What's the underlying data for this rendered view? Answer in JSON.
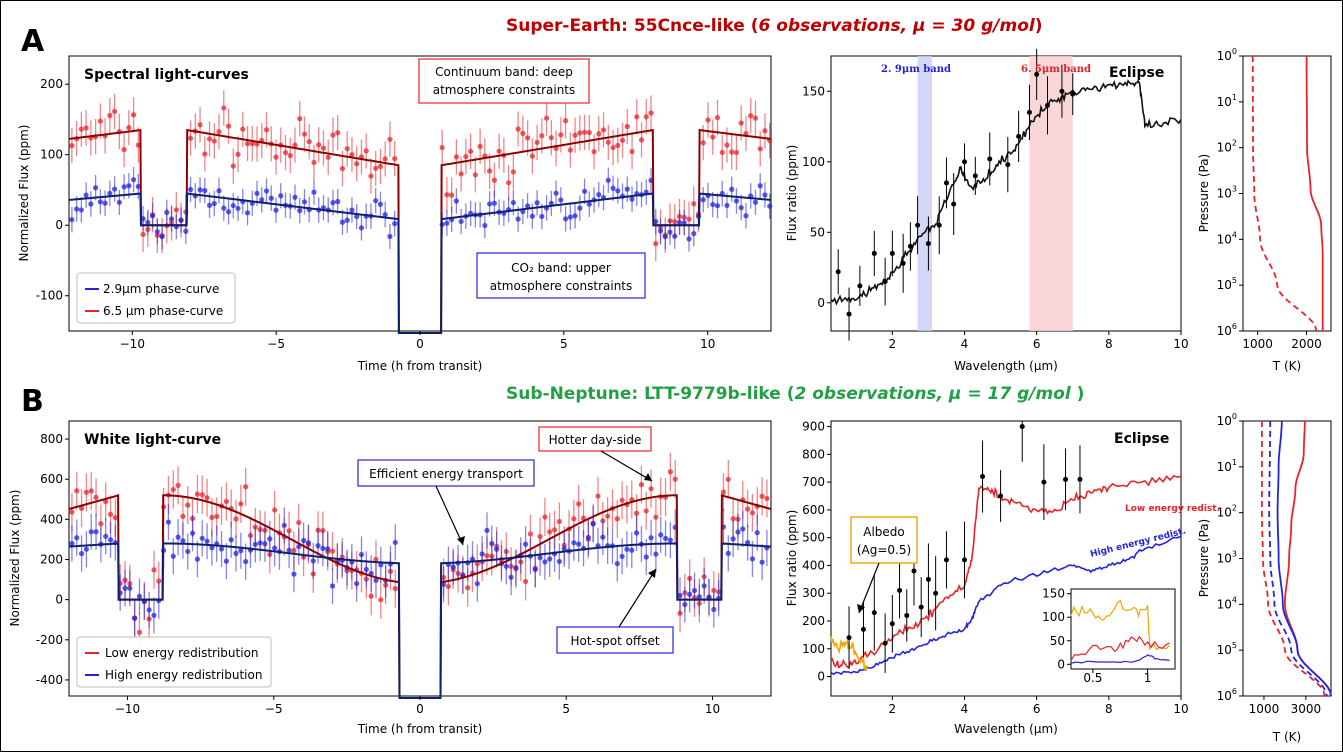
{
  "panels": {
    "A": {
      "letter": "A",
      "headline_parts": [
        "Super-Earth: 55Cnce-like (",
        "6 observations, ",
        "μ = 30 g/mol",
        ")"
      ],
      "headline_color": "#c00000",
      "lc_title": "Spectral light-curves",
      "annotation_top": [
        "Continuum band: deep",
        "atmosphere constraints"
      ],
      "annotation_bottom": [
        "CO₂ band: upper",
        "atmosphere constraints"
      ],
      "legend": [
        "2.9μm phase-curve",
        "6.5 μm phase-curve"
      ],
      "eclipse_title": "Eclipse",
      "band_labels": [
        "2. 9μm band",
        "6. 5μm band"
      ]
    },
    "B": {
      "letter": "B",
      "headline_parts": [
        "Sub-Neptune: LTT-9779b-like (",
        "2 observations, ",
        "μ = 17 g/mol ",
        ")"
      ],
      "headline_color": "#22a045",
      "lc_title": "White light-curve",
      "annotation_hot": "Hotter day-side",
      "annotation_eff": "Efficient energy transport",
      "annotation_spot": "Hot-spot offset",
      "legend": [
        "Low energy redistribution",
        "High energy redistribution"
      ],
      "eclipse_title": "Eclipse",
      "albedo": [
        "Albedo",
        "(Ag=0.5)"
      ],
      "low_label": "Low energy redist.",
      "high_label": "High energy redist."
    }
  },
  "colors": {
    "red": "#e8232a",
    "blue": "#2323e0",
    "darkred": "#8b0000",
    "darkblue": "#0f1f6b",
    "orange": "#f0a500",
    "bandblue": "#c9cdf5",
    "bandred": "#f8cdd0"
  },
  "chart_data": [
    {
      "type": "scatter",
      "id": "A-lightcurve",
      "xlabel": "Time (h from transit)",
      "ylabel": "Normalized Flux (ppm)",
      "xlim": [
        -12.2,
        12.2
      ],
      "ylim": [
        -150,
        240
      ],
      "xticks": [
        -10,
        -5,
        0,
        5,
        10
      ],
      "xticklabels": [
        "−10",
        "−5",
        "0",
        "5",
        "10"
      ],
      "yticks": [
        -100,
        0,
        100,
        200
      ],
      "yticklabels": [
        "-100",
        "0",
        "100",
        "200"
      ],
      "series": [
        {
          "name": "2.9μm phase-curve",
          "mean_amplitude": 45,
          "night": 5,
          "err": 18,
          "noise": 20
        },
        {
          "name": "6.5 μm phase-curve",
          "mean_amplitude": 135,
          "night": 80,
          "err": 25,
          "noise": 30
        }
      ],
      "eclipse_h": [
        -9.7,
        -8.1,
        8.1,
        9.7
      ],
      "transit_h": [
        -0.75,
        0.75
      ]
    },
    {
      "type": "line",
      "id": "A-eclipse",
      "xlabel": "Wavelength (μm)",
      "ylabel": "Flux ratio (ppm)",
      "xlim": [
        0.3,
        10
      ],
      "ylim": [
        -20,
        175
      ],
      "xticks": [
        2,
        4,
        6,
        8,
        10
      ],
      "yticks": [
        0,
        50,
        100,
        150
      ],
      "bands": [
        [
          2.7,
          3.1
        ],
        [
          5.8,
          7.0
        ]
      ],
      "model": [
        [
          0.3,
          0
        ],
        [
          0.8,
          2
        ],
        [
          1.2,
          5
        ],
        [
          1.6,
          12
        ],
        [
          2.0,
          20
        ],
        [
          2.4,
          35
        ],
        [
          2.8,
          48
        ],
        [
          3.2,
          55
        ],
        [
          3.6,
          80
        ],
        [
          3.9,
          95
        ],
        [
          4.2,
          80
        ],
        [
          4.6,
          90
        ],
        [
          5.0,
          100
        ],
        [
          5.4,
          110
        ],
        [
          5.8,
          125
        ],
        [
          6.2,
          138
        ],
        [
          6.6,
          145
        ],
        [
          7.0,
          150
        ],
        [
          7.5,
          152
        ],
        [
          8.0,
          154
        ],
        [
          8.5,
          156
        ],
        [
          8.85,
          156
        ],
        [
          9.0,
          125
        ],
        [
          9.4,
          126
        ],
        [
          10,
          130
        ]
      ],
      "observations": [
        [
          0.5,
          22
        ],
        [
          0.8,
          -8
        ],
        [
          1.1,
          12
        ],
        [
          1.5,
          35
        ],
        [
          1.8,
          15
        ],
        [
          2.0,
          35
        ],
        [
          2.3,
          28
        ],
        [
          2.5,
          40
        ],
        [
          2.7,
          55
        ],
        [
          3.0,
          42
        ],
        [
          3.3,
          55
        ],
        [
          3.5,
          85
        ],
        [
          3.7,
          70
        ],
        [
          4.0,
          100
        ],
        [
          4.3,
          90
        ],
        [
          4.7,
          102
        ],
        [
          5.2,
          98
        ],
        [
          5.5,
          118
        ],
        [
          5.8,
          135
        ],
        [
          6.0,
          162
        ],
        [
          6.3,
          140
        ],
        [
          6.7,
          150
        ],
        [
          7.0,
          148
        ]
      ]
    },
    {
      "type": "line",
      "id": "A-tp",
      "xlabel": "T (K)",
      "ylabel": "Pressure (Pa)",
      "xlim": [
        700,
        2500
      ],
      "ylim": [
        1,
        1000000
      ],
      "yscale": "log",
      "xticks": [
        1000,
        2000
      ],
      "series": [
        {
          "style": "solid",
          "points": [
            [
              2000,
              1
            ],
            [
              2010,
              100
            ],
            [
              2080,
              800
            ],
            [
              2300,
              5000
            ],
            [
              2330,
              20000
            ],
            [
              2330,
              1000000
            ]
          ]
        },
        {
          "style": "dashed",
          "points": [
            [
              900,
              1
            ],
            [
              905,
              100
            ],
            [
              930,
              1000
            ],
            [
              1050,
              10000
            ],
            [
              1400,
              100000
            ],
            [
              2200,
              1000000
            ]
          ]
        }
      ]
    },
    {
      "type": "scatter",
      "id": "B-lightcurve",
      "xlabel": "Time (h from transit)",
      "ylabel": "Normalized Flux (ppm)",
      "xlim": [
        -12.0,
        12.0
      ],
      "ylim": [
        -480,
        890
      ],
      "xticks": [
        -10,
        -5,
        0,
        5,
        10
      ],
      "xticklabels": [
        "−10",
        "−5",
        "0",
        "5",
        "10"
      ],
      "yticks": [
        -400,
        -200,
        0,
        200,
        400,
        600,
        800
      ],
      "series": [
        {
          "name": "Low energy redistribution",
          "day": 520,
          "night": 80,
          "err": 95,
          "noise": 110
        },
        {
          "name": "High energy redistribution",
          "day": 280,
          "night": 180,
          "err": 90,
          "noise": 100
        }
      ],
      "eclipse_h": [
        -10.3,
        -8.8,
        8.8,
        10.3
      ],
      "transit_h": [
        -0.7,
        0.7
      ]
    },
    {
      "type": "line",
      "id": "B-eclipse",
      "xlabel": "Wavelength (μm)",
      "ylabel": "Flux ratio (ppm)",
      "xlim": [
        0.3,
        10
      ],
      "ylim": [
        -70,
        920
      ],
      "xticks": [
        2,
        4,
        6,
        8,
        10
      ],
      "yticks": [
        0,
        100,
        200,
        300,
        400,
        500,
        600,
        700,
        800,
        900
      ],
      "low_model": [
        [
          0.3,
          50
        ],
        [
          0.6,
          40
        ],
        [
          1.0,
          55
        ],
        [
          1.5,
          90
        ],
        [
          2.0,
          140
        ],
        [
          2.5,
          180
        ],
        [
          3.0,
          220
        ],
        [
          3.5,
          280
        ],
        [
          4.0,
          330
        ],
        [
          4.2,
          420
        ],
        [
          4.4,
          680
        ],
        [
          4.7,
          680
        ],
        [
          5.0,
          640
        ],
        [
          5.5,
          620
        ],
        [
          6.0,
          600
        ],
        [
          6.5,
          590
        ],
        [
          7.0,
          640
        ],
        [
          7.5,
          660
        ],
        [
          8.0,
          680
        ],
        [
          9.0,
          700
        ],
        [
          10.0,
          720
        ]
      ],
      "high_model": [
        [
          0.3,
          10
        ],
        [
          1.0,
          15
        ],
        [
          1.5,
          40
        ],
        [
          2.0,
          70
        ],
        [
          2.5,
          95
        ],
        [
          3.0,
          125
        ],
        [
          3.5,
          150
        ],
        [
          4.0,
          170
        ],
        [
          4.2,
          205
        ],
        [
          4.4,
          270
        ],
        [
          5.0,
          330
        ],
        [
          6.0,
          370
        ],
        [
          7.0,
          400
        ],
        [
          7.5,
          380
        ],
        [
          8.0,
          400
        ],
        [
          8.5,
          420
        ],
        [
          9.0,
          460
        ],
        [
          10.0,
          505
        ]
      ],
      "albedo_model": [
        [
          0.3,
          130
        ],
        [
          0.5,
          110
        ],
        [
          0.7,
          120
        ],
        [
          0.9,
          100
        ],
        [
          1.1,
          60
        ],
        [
          1.3,
          40
        ]
      ],
      "observations": [
        [
          0.8,
          140
        ],
        [
          1.2,
          170
        ],
        [
          1.5,
          230
        ],
        [
          1.8,
          120
        ],
        [
          2.0,
          190
        ],
        [
          2.2,
          310
        ],
        [
          2.4,
          220
        ],
        [
          2.6,
          380
        ],
        [
          2.8,
          250
        ],
        [
          3.0,
          350
        ],
        [
          3.2,
          300
        ],
        [
          3.5,
          420
        ],
        [
          4.0,
          420
        ],
        [
          4.5,
          720
        ],
        [
          5.0,
          650
        ],
        [
          5.6,
          900
        ],
        [
          6.2,
          700
        ],
        [
          6.8,
          710
        ],
        [
          7.2,
          710
        ]
      ],
      "inset": {
        "xlim": [
          0.3,
          1.25
        ],
        "ylim": [
          -10,
          160
        ],
        "xticks": [
          0.5,
          1.0
        ],
        "yticks": [
          0,
          50,
          100,
          150
        ]
      }
    },
    {
      "type": "line",
      "id": "B-tp",
      "xlabel": "T (K)",
      "ylabel": "Pressure (Pa)",
      "xlim": [
        0,
        4200
      ],
      "ylim": [
        1,
        1000000
      ],
      "yscale": "log",
      "xticks": [
        1000,
        3000
      ],
      "series": [
        {
          "color": "red",
          "style": "solid",
          "points": [
            [
              2950,
              1
            ],
            [
              2900,
              5
            ],
            [
              2500,
              30
            ],
            [
              2300,
              200
            ],
            [
              2200,
              1000
            ],
            [
              2000,
              10000
            ],
            [
              2600,
              100000
            ],
            [
              4200,
              1000000
            ]
          ]
        },
        {
          "color": "blue",
          "style": "solid",
          "points": [
            [
              1850,
              1
            ],
            [
              1700,
              10
            ],
            [
              1650,
              100
            ],
            [
              1700,
              1000
            ],
            [
              1900,
              10000
            ],
            [
              2600,
              100000
            ],
            [
              4200,
              1000000
            ]
          ]
        },
        {
          "color": "blue",
          "style": "dashed",
          "points": [
            [
              1300,
              1
            ],
            [
              1250,
              100
            ],
            [
              1300,
              1000
            ],
            [
              1500,
              10000
            ],
            [
              2300,
              100000
            ],
            [
              4000,
              1000000
            ]
          ]
        },
        {
          "color": "red",
          "style": "dashed",
          "points": [
            [
              900,
              1
            ],
            [
              900,
              100
            ],
            [
              950,
              1000
            ],
            [
              1200,
              10000
            ],
            [
              2000,
              100000
            ],
            [
              3900,
              1000000
            ]
          ]
        }
      ]
    }
  ]
}
